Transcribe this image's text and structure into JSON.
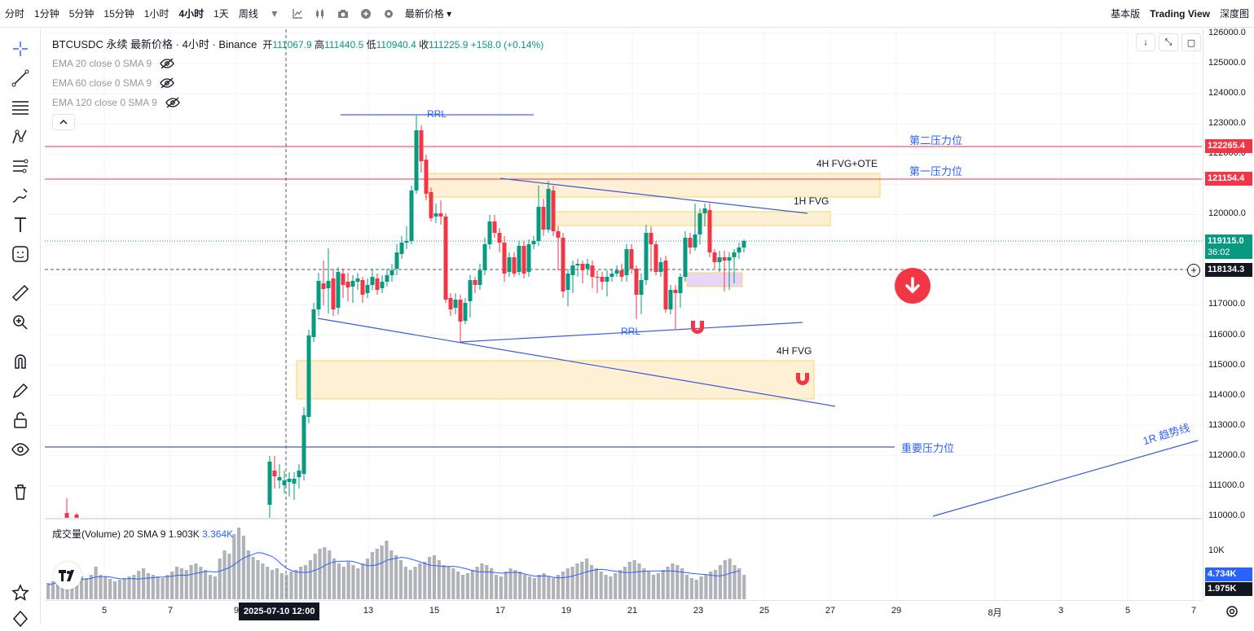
{
  "toolbar": {
    "intervals": [
      "分时",
      "1分钟",
      "5分钟",
      "15分钟",
      "1小时",
      "4小时",
      "1天",
      "周线"
    ],
    "active_interval": "4小时",
    "price_type": "最新价格",
    "right": [
      "基本版",
      "Trading View",
      "深度图"
    ]
  },
  "legend": {
    "symbol": "BTCUSDC 永续 最新价格 · 4小时 · Binance",
    "open_label": "开",
    "open": "111067.9",
    "high_label": "高",
    "high": "111440.5",
    "low_label": "低",
    "low": "110940.4",
    "close_label": "收",
    "close": "111225.9",
    "change": "+158.0 (+0.14%)"
  },
  "indicators": [
    {
      "label": "EMA 20 close 0 SMA 9"
    },
    {
      "label": "EMA 60 close 0 SMA 9"
    },
    {
      "label": "EMA 120 close 0 SMA 9"
    }
  ],
  "volume_legend": {
    "label": "成交量(Volume) 20 SMA 9",
    "v1": "1.903K",
    "v2": "3.364K"
  },
  "annotations": {
    "rrl_top": "RRL",
    "rrl_bottom": "RRL",
    "second_resistance": "第二压力位",
    "first_resistance": "第一压力位",
    "fvg_ote": "4H FVG+OTE",
    "fvg_1h": "1H FVG",
    "fvg_4h": "4H FVG",
    "important_resistance": "重要压力位",
    "trendline": "1R 趋势线"
  },
  "price_axis": {
    "ticks": [
      "126000.0",
      "125000.0",
      "124000.0",
      "123000.0",
      "122000.0",
      "121000.0",
      "120000.0",
      "119000.0",
      "118000.0",
      "117000.0",
      "116000.0",
      "115000.0",
      "114000.0",
      "113000.0",
      "112000.0",
      "111000.0",
      "110000.0"
    ],
    "label_122265": "122265.4",
    "label_121154": "121154.4",
    "label_current": "119115.0",
    "label_countdown": "36:02",
    "label_cross": "118134.3",
    "vol_tick": "10K",
    "vol_label1": "4.734K",
    "vol_label2": "1.975K"
  },
  "time_axis": {
    "ticks": [
      "5",
      "7",
      "9",
      "13",
      "15",
      "17",
      "19",
      "21",
      "23",
      "25",
      "27",
      "29",
      "8月",
      "3",
      "5",
      "7"
    ],
    "highlight": "2025-07-10   12:00"
  },
  "colors": {
    "up": "#089981",
    "down": "#f23645",
    "red_line": "#f23645",
    "blue": "#2962ff",
    "fvg": "#fdf0d5"
  },
  "icons": [
    "crosshair-icon",
    "trendline-icon",
    "fib-icon",
    "pattern-icon",
    "forecast-icon",
    "brush-icon",
    "text-icon",
    "emoji-icon",
    "ruler-icon",
    "zoom-icon",
    "magnet-icon",
    "pencil-lock-icon",
    "lock-icon",
    "eye-icon",
    "trash-icon",
    "star-icon",
    "diamond-icon"
  ]
}
